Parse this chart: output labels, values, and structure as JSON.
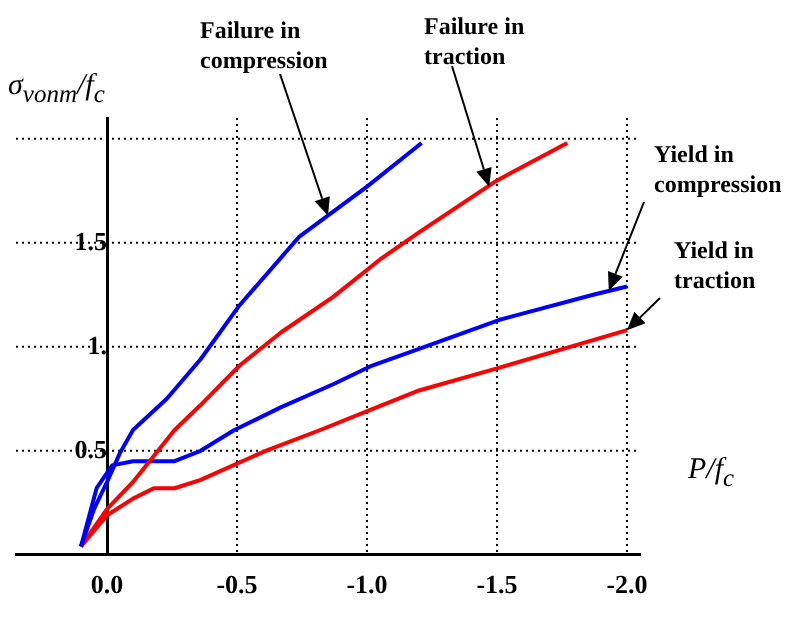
{
  "chart_data": {
    "type": "line",
    "xlabel": "P/f$_{c}$",
    "ylabel": "σ$_{vonm}$/f$_{c}$",
    "xlim": [
      0.35,
      -2.05
    ],
    "ylim": [
      0,
      2.1
    ],
    "xticks": [
      {
        "value": 0,
        "label": "0.0"
      },
      -0.5,
      {
        "value": -1,
        "label": "-1.0"
      },
      -1.5,
      {
        "value": -2,
        "label": "-2.0"
      }
    ],
    "yticks": [
      0.5,
      {
        "value": 1,
        "label": "1."
      },
      1.5,
      {
        "value": 2,
        "label": null
      }
    ],
    "grid": true,
    "legend": false,
    "series": [
      {
        "color": "#0000ff",
        "x": [
          0.1,
          0.05,
          0,
          -0.05,
          -0.1,
          -0.23,
          -0.36,
          -0.51,
          -0.74,
          -1.0,
          -1.21
        ],
        "values": [
          0.04,
          0.22,
          0.35,
          0.49,
          0.6,
          0.75,
          0.94,
          1.2,
          1.53,
          1.77,
          1.98
        ]
      },
      {
        "color": "#ff0000",
        "x": [
          0.1,
          0,
          -0.1,
          -0.26,
          -0.36,
          -0.51,
          -0.67,
          -0.87,
          -1.05,
          -1.2,
          -1.5,
          -1.77
        ],
        "values": [
          0.04,
          0.22,
          0.35,
          0.6,
          0.72,
          0.91,
          1.07,
          1.24,
          1.42,
          1.55,
          1.8,
          1.98
        ]
      },
      {
        "color": "#0000ff",
        "x": [
          0.1,
          0.04,
          -0.02,
          -0.1,
          -0.26,
          -0.36,
          -0.49,
          -0.67,
          -0.87,
          -1.02,
          -1.2,
          -1.51,
          -1.87,
          -2.0
        ],
        "values": [
          0.04,
          0.32,
          0.43,
          0.45,
          0.45,
          0.5,
          0.6,
          0.71,
          0.82,
          0.91,
          0.99,
          1.13,
          1.25,
          1.29
        ]
      },
      {
        "color": "#ff0000",
        "x": [
          0.1,
          0,
          -0.1,
          -0.18,
          -0.26,
          -0.36,
          -0.61,
          -0.82,
          -1.02,
          -1.2,
          -1.51,
          -2.0
        ],
        "values": [
          0.04,
          0.19,
          0.27,
          0.32,
          0.32,
          0.36,
          0.5,
          0.6,
          0.7,
          0.79,
          0.9,
          1.08
        ]
      }
    ],
    "annotations": [
      {
        "text": "Failure in compression",
        "x": -0.85,
        "y": 1.63
      },
      {
        "text": "Failure in traction",
        "x": -1.47,
        "y": 1.77
      },
      {
        "text": "Yield in compression",
        "x": -1.93,
        "y": 1.27
      },
      {
        "text": "Yield in traction",
        "x": -2.0,
        "y": 1.08
      }
    ]
  }
}
